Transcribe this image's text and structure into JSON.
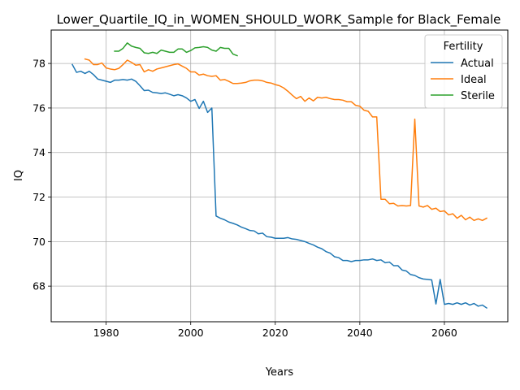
{
  "chart_data": {
    "type": "line",
    "title": "Lower_Quartile_IQ_in_WOMEN_SHOULD_WORK_Sample for Black_Female",
    "xlabel": "Years",
    "ylabel": "IQ",
    "xlim": [
      1967,
      2075
    ],
    "ylim": [
      66.4,
      79.5
    ],
    "xticks": [
      1980,
      2000,
      2020,
      2040,
      2060
    ],
    "yticks": [
      68,
      70,
      72,
      74,
      76,
      78
    ],
    "grid": true,
    "legend": {
      "title": "Fertility",
      "position": "top-right"
    },
    "series": [
      {
        "name": "Actual",
        "color": "#1f77b4",
        "points": [
          [
            1972,
            77.95
          ],
          [
            1973,
            77.6
          ],
          [
            1974,
            77.65
          ],
          [
            1975,
            77.55
          ],
          [
            1976,
            77.65
          ],
          [
            1977,
            77.5
          ],
          [
            1978,
            77.3
          ],
          [
            1979,
            77.25
          ],
          [
            1980,
            77.2
          ],
          [
            1981,
            77.15
          ],
          [
            1982,
            77.25
          ],
          [
            1983,
            77.25
          ],
          [
            1984,
            77.28
          ],
          [
            1985,
            77.25
          ],
          [
            1986,
            77.3
          ],
          [
            1987,
            77.2
          ],
          [
            1988,
            77.0
          ],
          [
            1989,
            76.78
          ],
          [
            1990,
            76.8
          ],
          [
            1991,
            76.7
          ],
          [
            1992,
            76.68
          ],
          [
            1993,
            76.65
          ],
          [
            1994,
            76.68
          ],
          [
            1995,
            76.62
          ],
          [
            1996,
            76.55
          ],
          [
            1997,
            76.6
          ],
          [
            1998,
            76.55
          ],
          [
            1999,
            76.45
          ],
          [
            2000,
            76.3
          ],
          [
            2001,
            76.38
          ],
          [
            2002,
            75.98
          ],
          [
            2003,
            76.3
          ],
          [
            2004,
            75.8
          ],
          [
            2005,
            76.0
          ],
          [
            2006,
            71.15
          ],
          [
            2007,
            71.05
          ],
          [
            2008,
            70.98
          ],
          [
            2009,
            70.88
          ],
          [
            2010,
            70.82
          ],
          [
            2011,
            70.75
          ],
          [
            2012,
            70.65
          ],
          [
            2013,
            70.58
          ],
          [
            2014,
            70.5
          ],
          [
            2015,
            70.48
          ],
          [
            2016,
            70.35
          ],
          [
            2017,
            70.38
          ],
          [
            2018,
            70.22
          ],
          [
            2019,
            70.2
          ],
          [
            2020,
            70.15
          ],
          [
            2021,
            70.15
          ],
          [
            2022,
            70.15
          ],
          [
            2023,
            70.18
          ],
          [
            2024,
            70.12
          ],
          [
            2025,
            70.1
          ],
          [
            2026,
            70.05
          ],
          [
            2027,
            70.0
          ],
          [
            2028,
            69.92
          ],
          [
            2029,
            69.85
          ],
          [
            2030,
            69.75
          ],
          [
            2031,
            69.68
          ],
          [
            2032,
            69.55
          ],
          [
            2033,
            69.48
          ],
          [
            2034,
            69.32
          ],
          [
            2035,
            69.28
          ],
          [
            2036,
            69.15
          ],
          [
            2037,
            69.15
          ],
          [
            2038,
            69.1
          ],
          [
            2039,
            69.15
          ],
          [
            2040,
            69.15
          ],
          [
            2041,
            69.18
          ],
          [
            2042,
            69.18
          ],
          [
            2043,
            69.22
          ],
          [
            2044,
            69.15
          ],
          [
            2045,
            69.18
          ],
          [
            2046,
            69.05
          ],
          [
            2047,
            69.08
          ],
          [
            2048,
            68.92
          ],
          [
            2049,
            68.92
          ],
          [
            2050,
            68.72
          ],
          [
            2051,
            68.68
          ],
          [
            2052,
            68.52
          ],
          [
            2053,
            68.48
          ],
          [
            2054,
            68.38
          ],
          [
            2055,
            68.32
          ],
          [
            2056,
            68.3
          ],
          [
            2057,
            68.28
          ],
          [
            2058,
            67.2
          ],
          [
            2059,
            68.3
          ],
          [
            2060,
            67.18
          ],
          [
            2061,
            67.22
          ],
          [
            2062,
            67.18
          ],
          [
            2063,
            67.25
          ],
          [
            2064,
            67.18
          ],
          [
            2065,
            67.25
          ],
          [
            2066,
            67.15
          ],
          [
            2067,
            67.22
          ],
          [
            2068,
            67.1
          ],
          [
            2069,
            67.15
          ],
          [
            2070,
            67.02
          ]
        ]
      },
      {
        "name": "Ideal",
        "color": "#ff7f0e",
        "points": [
          [
            1975,
            78.2
          ],
          [
            1976,
            78.15
          ],
          [
            1977,
            77.95
          ],
          [
            1978,
            77.95
          ],
          [
            1979,
            78.02
          ],
          [
            1980,
            77.8
          ],
          [
            1981,
            77.75
          ],
          [
            1982,
            77.72
          ],
          [
            1983,
            77.78
          ],
          [
            1984,
            77.95
          ],
          [
            1985,
            78.15
          ],
          [
            1986,
            78.05
          ],
          [
            1987,
            77.92
          ],
          [
            1988,
            77.95
          ],
          [
            1989,
            77.62
          ],
          [
            1990,
            77.72
          ],
          [
            1991,
            77.65
          ],
          [
            1992,
            77.75
          ],
          [
            1993,
            77.8
          ],
          [
            1994,
            77.85
          ],
          [
            1995,
            77.9
          ],
          [
            1996,
            77.95
          ],
          [
            1997,
            77.98
          ],
          [
            1998,
            77.88
          ],
          [
            1999,
            77.78
          ],
          [
            2000,
            77.62
          ],
          [
            2001,
            77.62
          ],
          [
            2002,
            77.48
          ],
          [
            2003,
            77.52
          ],
          [
            2004,
            77.45
          ],
          [
            2005,
            77.42
          ],
          [
            2006,
            77.45
          ],
          [
            2007,
            77.25
          ],
          [
            2008,
            77.28
          ],
          [
            2009,
            77.2
          ],
          [
            2010,
            77.1
          ],
          [
            2011,
            77.1
          ],
          [
            2012,
            77.12
          ],
          [
            2013,
            77.15
          ],
          [
            2014,
            77.22
          ],
          [
            2015,
            77.25
          ],
          [
            2016,
            77.25
          ],
          [
            2017,
            77.22
          ],
          [
            2018,
            77.15
          ],
          [
            2019,
            77.12
          ],
          [
            2020,
            77.05
          ],
          [
            2021,
            77.0
          ],
          [
            2022,
            76.9
          ],
          [
            2023,
            76.75
          ],
          [
            2024,
            76.58
          ],
          [
            2025,
            76.42
          ],
          [
            2026,
            76.52
          ],
          [
            2027,
            76.3
          ],
          [
            2028,
            76.45
          ],
          [
            2029,
            76.32
          ],
          [
            2030,
            76.48
          ],
          [
            2031,
            76.45
          ],
          [
            2032,
            76.48
          ],
          [
            2033,
            76.42
          ],
          [
            2034,
            76.38
          ],
          [
            2035,
            76.38
          ],
          [
            2036,
            76.35
          ],
          [
            2037,
            76.28
          ],
          [
            2038,
            76.28
          ],
          [
            2039,
            76.12
          ],
          [
            2040,
            76.08
          ],
          [
            2041,
            75.9
          ],
          [
            2042,
            75.85
          ],
          [
            2043,
            75.6
          ],
          [
            2044,
            75.6
          ],
          [
            2045,
            71.9
          ],
          [
            2046,
            71.9
          ],
          [
            2047,
            71.7
          ],
          [
            2048,
            71.72
          ],
          [
            2049,
            71.6
          ],
          [
            2050,
            71.62
          ],
          [
            2051,
            71.6
          ],
          [
            2052,
            71.62
          ],
          [
            2053,
            75.5
          ],
          [
            2054,
            71.6
          ],
          [
            2055,
            71.55
          ],
          [
            2056,
            71.62
          ],
          [
            2057,
            71.45
          ],
          [
            2058,
            71.5
          ],
          [
            2059,
            71.35
          ],
          [
            2060,
            71.38
          ],
          [
            2061,
            71.2
          ],
          [
            2062,
            71.25
          ],
          [
            2063,
            71.05
          ],
          [
            2064,
            71.18
          ],
          [
            2065,
            70.98
          ],
          [
            2066,
            71.1
          ],
          [
            2067,
            70.95
          ],
          [
            2068,
            71.02
          ],
          [
            2069,
            70.95
          ],
          [
            2070,
            71.05
          ]
        ]
      },
      {
        "name": "Sterile",
        "color": "#2ca02c",
        "points": [
          [
            1982,
            78.55
          ],
          [
            1983,
            78.55
          ],
          [
            1984,
            78.68
          ],
          [
            1985,
            78.92
          ],
          [
            1986,
            78.78
          ],
          [
            1987,
            78.72
          ],
          [
            1988,
            78.68
          ],
          [
            1989,
            78.48
          ],
          [
            1990,
            78.45
          ],
          [
            1991,
            78.5
          ],
          [
            1992,
            78.45
          ],
          [
            1993,
            78.6
          ],
          [
            1994,
            78.55
          ],
          [
            1995,
            78.5
          ],
          [
            1996,
            78.5
          ],
          [
            1997,
            78.65
          ],
          [
            1998,
            78.65
          ],
          [
            1999,
            78.5
          ],
          [
            2000,
            78.58
          ],
          [
            2001,
            78.7
          ],
          [
            2002,
            78.72
          ],
          [
            2003,
            78.75
          ],
          [
            2004,
            78.72
          ],
          [
            2005,
            78.6
          ],
          [
            2006,
            78.55
          ],
          [
            2007,
            78.72
          ],
          [
            2008,
            78.68
          ],
          [
            2009,
            78.68
          ],
          [
            2010,
            78.42
          ],
          [
            2011,
            78.35
          ]
        ]
      }
    ]
  }
}
